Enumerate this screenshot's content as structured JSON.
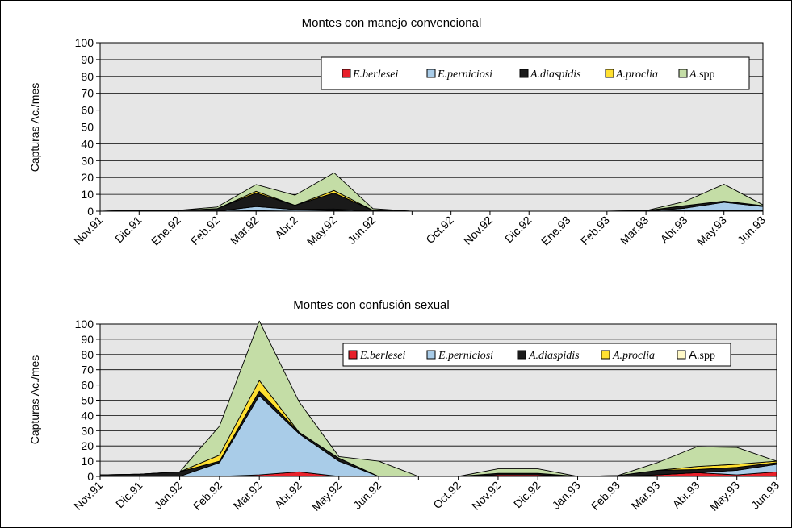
{
  "colors": {
    "E.berlesei": "#e8202a",
    "E.perniciosi": "#a9cce8",
    "A.diaspidis": "#1a1a1a",
    "A.proclia": "#ffe030",
    "A.spp": "#c4dda6",
    "plot_background": "#e6e6e6",
    "legend_spp_color_chart2": "#fff9c8"
  },
  "chart_data": [
    {
      "type": "area",
      "stacked": true,
      "title": "Montes con manejo convencional",
      "ylabel": "Capturas Ac./mes",
      "xlabel": "",
      "ylim": [
        0,
        100
      ],
      "yticks": [
        0,
        10,
        20,
        30,
        40,
        50,
        60,
        70,
        80,
        90,
        100
      ],
      "grid": true,
      "legend_position": "top-right",
      "categories": [
        "Nov.91",
        "Dic.91",
        "Ene.92",
        "Feb.92",
        "Mar.92",
        "Abr.2",
        "May.92",
        "Jun.92",
        "",
        "Oct.92",
        "Nov.92",
        "Dic.92",
        "Ene.93",
        "Feb.93",
        "Mar.93",
        "Abr.93",
        "May.93",
        "Jun.93"
      ],
      "series": [
        {
          "name": "E.berlesei",
          "values": [
            0,
            0,
            0,
            0,
            0.3,
            0,
            0.3,
            0,
            0,
            0,
            0,
            0,
            0,
            0,
            0,
            0.3,
            0.3,
            0.3
          ]
        },
        {
          "name": "E.perniciosi",
          "values": [
            0,
            0,
            0,
            0,
            2.5,
            1,
            1,
            0,
            0,
            0,
            0,
            0,
            0,
            0,
            0,
            1.5,
            5,
            2.5
          ]
        },
        {
          "name": "A.diaspidis",
          "values": [
            0,
            0.5,
            0.5,
            1.5,
            8,
            2.5,
            9.5,
            0.5,
            0,
            0,
            0,
            0,
            0,
            0,
            0.3,
            1.5,
            0.7,
            0.5
          ]
        },
        {
          "name": "A.proclia",
          "values": [
            0,
            0,
            0,
            0,
            1,
            0,
            1.5,
            0,
            0,
            0,
            0,
            0,
            0,
            0,
            0,
            0,
            0,
            0
          ]
        },
        {
          "name": "A.spp",
          "values": [
            0,
            0,
            0,
            1,
            4,
            6,
            10.5,
            1,
            0,
            0,
            0,
            0,
            0,
            0,
            0,
            2.5,
            10,
            0.5
          ]
        }
      ]
    },
    {
      "type": "area",
      "stacked": true,
      "title": "Montes con confusión sexual",
      "ylabel": "Capturas Ac./mes",
      "xlabel": "",
      "ylim": [
        0,
        100
      ],
      "yticks": [
        0,
        10,
        20,
        30,
        40,
        50,
        60,
        70,
        80,
        90,
        100
      ],
      "grid": true,
      "legend_position": "top-right",
      "categories": [
        "Nov.91",
        "Dic.91",
        "Jan.92",
        "Feb.92",
        "Mar.92",
        "Abr.92",
        "May.92",
        "Jun.92",
        "",
        "Oct.92",
        "Nov.92",
        "Dic.92",
        "Jan.93",
        "Feb.93",
        "Mar.93",
        "Abr.93",
        "May.93",
        "Jun.93"
      ],
      "series": [
        {
          "name": "E.berlesei",
          "values": [
            0,
            0,
            0,
            0,
            1,
            3,
            0,
            0,
            0,
            0,
            1,
            1,
            0,
            0,
            1,
            2.5,
            1,
            3
          ]
        },
        {
          "name": "E.perniciosi",
          "values": [
            0,
            0,
            0,
            9,
            52,
            25,
            10,
            0,
            0,
            0,
            0,
            0,
            0,
            0,
            0,
            0,
            3,
            5
          ]
        },
        {
          "name": "A.diaspidis",
          "values": [
            1,
            1.5,
            3,
            1,
            3,
            1,
            2,
            0,
            0,
            0,
            1,
            1,
            0,
            0.5,
            3,
            2,
            2,
            1
          ]
        },
        {
          "name": "A.proclia",
          "values": [
            0,
            0,
            0,
            4,
            7,
            0,
            0,
            0,
            0,
            0,
            0,
            0,
            0,
            0,
            0,
            2,
            2,
            1
          ]
        },
        {
          "name": "A.spp",
          "values": [
            0,
            0,
            0,
            19,
            39,
            20,
            1,
            10,
            0,
            0,
            3,
            3,
            0,
            0,
            5,
            13,
            11,
            0
          ]
        }
      ]
    }
  ]
}
